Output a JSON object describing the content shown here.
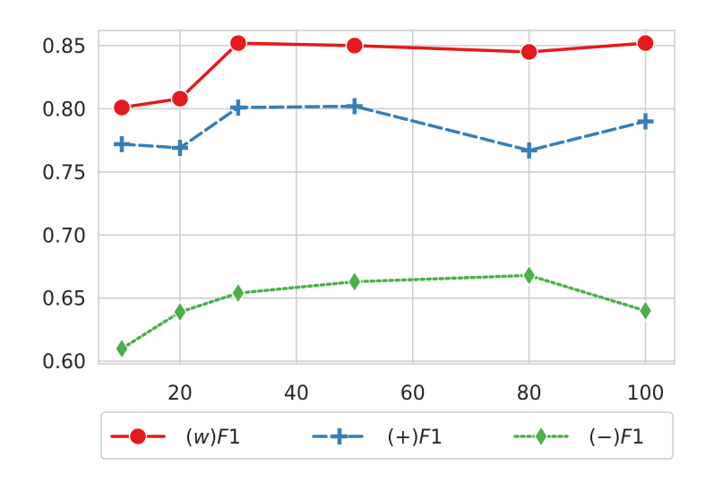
{
  "chart_data": {
    "type": "line",
    "title": "",
    "xlabel": "",
    "ylabel": "",
    "x": [
      10,
      20,
      30,
      50,
      80,
      100
    ],
    "xticks": [
      20,
      40,
      60,
      80,
      100
    ],
    "yticks": [
      0.6,
      0.65,
      0.7,
      0.75,
      0.8,
      0.85
    ],
    "xlim": [
      6,
      105
    ],
    "ylim": [
      0.598,
      0.862
    ],
    "grid": true,
    "legend_placement": "bottom-center",
    "series": [
      {
        "name": "(w)F1",
        "values": [
          0.801,
          0.808,
          0.852,
          0.85,
          0.845,
          0.852
        ],
        "color": "#e41a1c",
        "marker": "circle",
        "linestyle": "solid"
      },
      {
        "name": "(+)F1",
        "values": [
          0.772,
          0.769,
          0.801,
          0.802,
          0.767,
          0.79
        ],
        "color": "#377eb8",
        "marker": "plus",
        "linestyle": "dashed"
      },
      {
        "name": "(−)F1",
        "values": [
          0.61,
          0.639,
          0.654,
          0.663,
          0.668,
          0.64
        ],
        "color": "#4daf4a",
        "marker": "diamond",
        "linestyle": "dotted"
      }
    ]
  }
}
